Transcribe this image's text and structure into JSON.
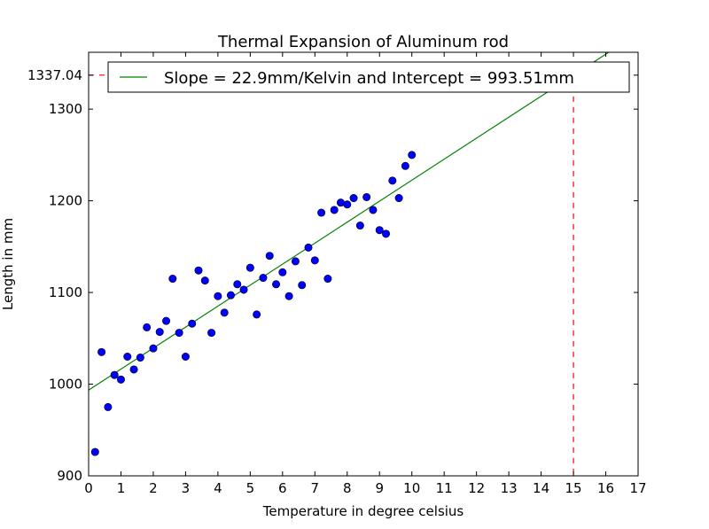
{
  "chart_data": {
    "type": "scatter",
    "title": "Thermal Expansion of Aluminum rod",
    "xlabel": "Temperature in degree celsius",
    "ylabel": "Length in mm",
    "xlim": [
      0,
      17
    ],
    "ylim": [
      900,
      1362
    ],
    "x_ticks": [
      0,
      1,
      2,
      3,
      4,
      5,
      6,
      7,
      8,
      9,
      10,
      11,
      12,
      13,
      14,
      15,
      16,
      17
    ],
    "y_ticks": [
      900,
      1000,
      1100,
      1200,
      1300
    ],
    "y_tick_labels": [
      "900",
      "1000",
      "1100",
      "1200",
      "1300"
    ],
    "grid": false,
    "legend_position": "top-right",
    "marker_color": "#0000ff",
    "fit_color": "#008000",
    "projection_color": "#ff0000",
    "points": {
      "x": [
        0.2,
        0.4,
        0.6,
        0.8,
        1.0,
        1.2,
        1.4,
        1.6,
        1.8,
        2.0,
        2.2,
        2.4,
        2.6,
        2.8,
        3.0,
        3.2,
        3.4,
        3.6,
        3.8,
        4.0,
        4.2,
        4.4,
        4.6,
        4.8,
        5.0,
        5.2,
        5.4,
        5.6,
        5.8,
        6.0,
        6.2,
        6.4,
        6.6,
        6.8,
        7.0,
        7.2,
        7.4,
        7.6,
        7.8,
        8.0,
        8.2,
        8.4,
        8.6,
        8.8,
        9.0,
        9.2,
        9.4,
        9.6,
        9.8,
        10.0
      ],
      "y": [
        926,
        1035,
        975,
        1010,
        1005,
        1030,
        1016,
        1029,
        1062,
        1039,
        1057,
        1069,
        1115,
        1056,
        1030,
        1066,
        1124,
        1113,
        1056,
        1096,
        1078,
        1097,
        1109,
        1103,
        1127,
        1076,
        1116,
        1140,
        1109,
        1122,
        1096,
        1134,
        1108,
        1149,
        1135,
        1187,
        1115,
        1190,
        1198,
        1196,
        1203,
        1173,
        1204,
        1190,
        1168,
        1164,
        1222,
        1203,
        1238,
        1250
      ]
    },
    "fit": {
      "name": "Slope = 22.9mm/Kelvin and Intercept = 993.51mm",
      "slope": 22.9,
      "intercept": 993.51
    },
    "projection": {
      "x": 15,
      "y": 1337.04,
      "y_label": "1337.04"
    }
  }
}
